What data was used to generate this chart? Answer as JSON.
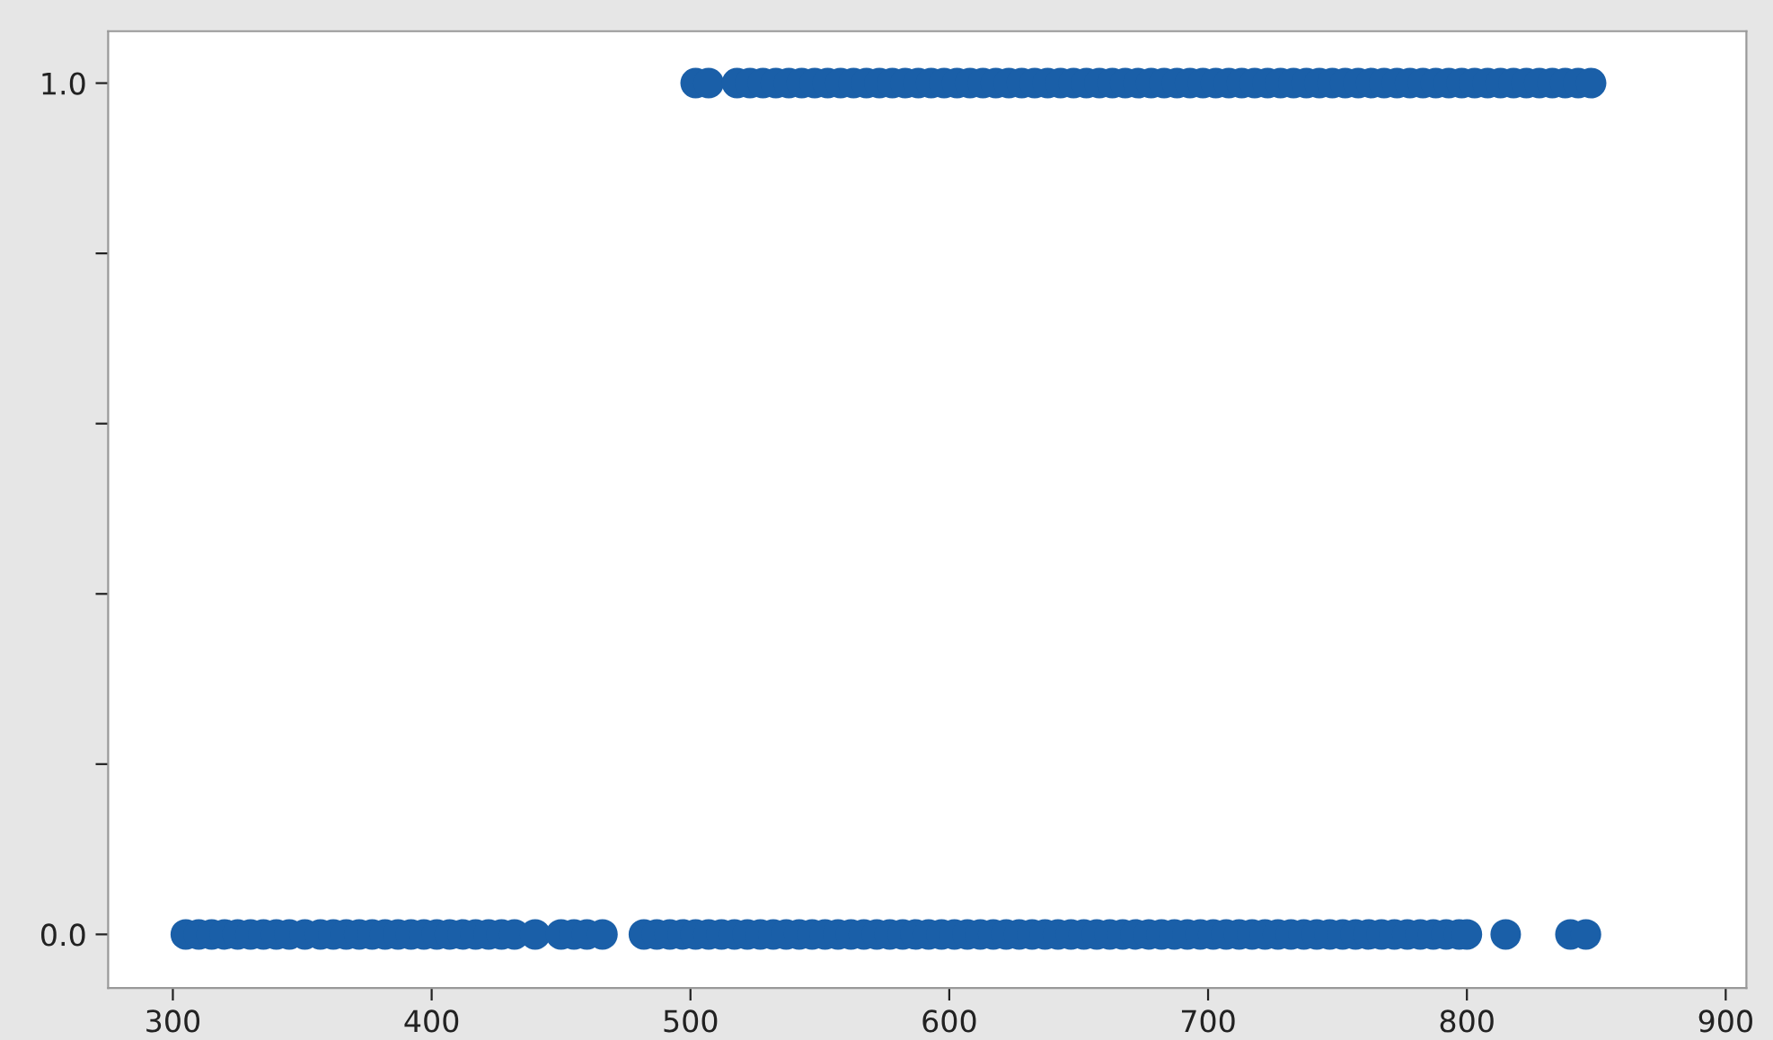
{
  "chart_data": {
    "type": "scatter",
    "series": [
      {
        "color": "#1a5fa8",
        "x": [
          305,
          310,
          315,
          320,
          325,
          330,
          335,
          340,
          345,
          351,
          357,
          362,
          367,
          372,
          377,
          382,
          387,
          392,
          397,
          402,
          407,
          412,
          417,
          422,
          427,
          432,
          440,
          450,
          455,
          460,
          466,
          482,
          487,
          492,
          497,
          502,
          507,
          512,
          517,
          522,
          527,
          532,
          537,
          542,
          547,
          552,
          557,
          562,
          567,
          572,
          577,
          582,
          587,
          592,
          597,
          602,
          607,
          612,
          617,
          622,
          627,
          632,
          637,
          642,
          647,
          652,
          657,
          662,
          667,
          672,
          677,
          682,
          687,
          692,
          697,
          702,
          707,
          712,
          717,
          722,
          727,
          732,
          737,
          742,
          747,
          752,
          757,
          762,
          767,
          772,
          777,
          782,
          787,
          792,
          797,
          800,
          815,
          840,
          846
        ],
        "values": [
          0,
          0,
          0,
          0,
          0,
          0,
          0,
          0,
          0,
          0,
          0,
          0,
          0,
          0,
          0,
          0,
          0,
          0,
          0,
          0,
          0,
          0,
          0,
          0,
          0,
          0,
          0,
          0,
          0,
          0,
          0,
          0,
          0,
          0,
          0,
          0,
          0,
          0,
          0,
          0,
          0,
          0,
          0,
          0,
          0,
          0,
          0,
          0,
          0,
          0,
          0,
          0,
          0,
          0,
          0,
          0,
          0,
          0,
          0,
          0,
          0,
          0,
          0,
          0,
          0,
          0,
          0,
          0,
          0,
          0,
          0,
          0,
          0,
          0,
          0,
          0,
          0,
          0,
          0,
          0,
          0,
          0,
          0,
          0,
          0,
          0,
          0,
          0,
          0,
          0,
          0,
          0,
          0,
          0,
          0,
          0,
          0,
          0,
          0
        ]
      },
      {
        "color": "#1a5fa8",
        "x": [
          502,
          507,
          518,
          523,
          528,
          533,
          538,
          543,
          548,
          553,
          558,
          563,
          568,
          573,
          578,
          583,
          588,
          593,
          598,
          603,
          608,
          613,
          618,
          623,
          628,
          633,
          638,
          643,
          648,
          653,
          658,
          663,
          668,
          673,
          678,
          683,
          688,
          693,
          698,
          703,
          708,
          713,
          718,
          723,
          728,
          733,
          738,
          743,
          748,
          753,
          758,
          763,
          768,
          773,
          778,
          783,
          788,
          793,
          798,
          803,
          808,
          813,
          818,
          823,
          828,
          833,
          838,
          843,
          848
        ],
        "values": [
          1,
          1,
          1,
          1,
          1,
          1,
          1,
          1,
          1,
          1,
          1,
          1,
          1,
          1,
          1,
          1,
          1,
          1,
          1,
          1,
          1,
          1,
          1,
          1,
          1,
          1,
          1,
          1,
          1,
          1,
          1,
          1,
          1,
          1,
          1,
          1,
          1,
          1,
          1,
          1,
          1,
          1,
          1,
          1,
          1,
          1,
          1,
          1,
          1,
          1,
          1,
          1,
          1,
          1,
          1,
          1,
          1,
          1,
          1,
          1,
          1,
          1,
          1,
          1,
          1,
          1,
          1,
          1,
          1
        ]
      }
    ],
    "xlim": [
      275,
      908
    ],
    "xticks": [
      300,
      400,
      500,
      600,
      700,
      800,
      900
    ],
    "ylim": [
      -0.063,
      1.061
    ],
    "yticks": [
      {
        "value": 0,
        "label": "0.0"
      },
      {
        "value": 0.2,
        "label": null
      },
      {
        "value": 0.4,
        "label": null
      },
      {
        "value": 0.6,
        "label": null
      },
      {
        "value": 0.8,
        "label": null
      },
      {
        "value": 1,
        "label": "1.0"
      }
    ],
    "marker": "circle",
    "grid": false,
    "legend": false
  }
}
